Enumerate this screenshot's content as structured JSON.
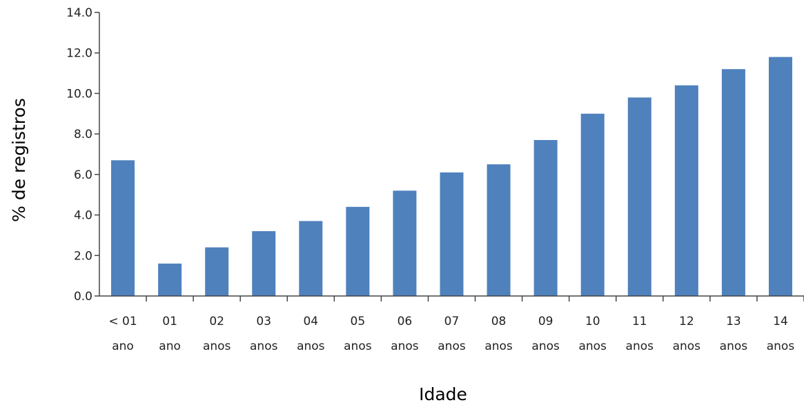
{
  "chart_data": {
    "type": "bar",
    "xlabel": "Idade",
    "ylabel": "% de registros",
    "ylim": [
      0,
      14
    ],
    "yticks": [
      "0.0",
      "2.0",
      "4.0",
      "6.0",
      "8.0",
      "10.0",
      "12.0",
      "14.0"
    ],
    "grid": false,
    "bar_color": "#4f81bd",
    "categories": [
      [
        "< 01",
        "ano"
      ],
      [
        "01",
        "ano"
      ],
      [
        "02",
        "anos"
      ],
      [
        "03",
        "anos"
      ],
      [
        "04",
        "anos"
      ],
      [
        "05",
        "anos"
      ],
      [
        "06",
        "anos"
      ],
      [
        "07",
        "anos"
      ],
      [
        "08",
        "anos"
      ],
      [
        "09",
        "anos"
      ],
      [
        "10",
        "anos"
      ],
      [
        "11",
        "anos"
      ],
      [
        "12",
        "anos"
      ],
      [
        "13",
        "anos"
      ],
      [
        "14",
        "anos"
      ]
    ],
    "values": [
      6.7,
      1.6,
      2.4,
      3.2,
      3.7,
      4.4,
      5.2,
      6.1,
      6.5,
      7.7,
      9.0,
      9.8,
      10.4,
      11.2,
      11.8
    ]
  }
}
